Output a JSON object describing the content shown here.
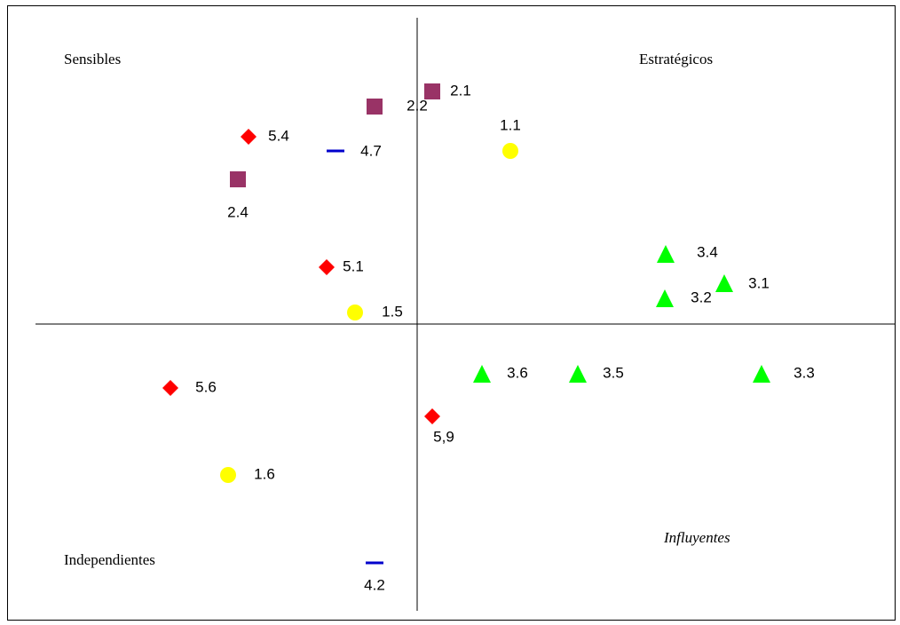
{
  "chart_data": {
    "type": "scatter",
    "quadrant_labels": [
      "Sensibles",
      "Estratégicos",
      "Independientes",
      "Influyentes"
    ],
    "xlim": [
      -43,
      54
    ],
    "ylim": [
      -32,
      35
    ],
    "series": [
      {
        "marker": "square",
        "color": "#993366",
        "labels": [
          "2.1",
          "2.2",
          "2.4"
        ],
        "x": [
          1.7,
          -4.8,
          -20.2
        ],
        "y": [
          26.2,
          24.5,
          16.3
        ]
      },
      {
        "marker": "diamond",
        "color": "#ff0000",
        "labels": [
          "5.4",
          "5.1",
          "5.6",
          "5,9"
        ],
        "x": [
          -19,
          -10.2,
          -27.8,
          1.7
        ],
        "y": [
          21.1,
          6.4,
          -7.2,
          -10.4
        ]
      },
      {
        "marker": "dash",
        "color": "#0000cc",
        "labels": [
          "4.7",
          "4.2"
        ],
        "x": [
          -9.2,
          -4.8
        ],
        "y": [
          19.5,
          -26.9
        ]
      },
      {
        "marker": "circle",
        "color": "#ffff00",
        "labels": [
          "1.1",
          "1.5",
          "1.6"
        ],
        "x": [
          10.5,
          -7,
          -21.3
        ],
        "y": [
          19.5,
          1.3,
          -17
        ]
      },
      {
        "marker": "triangle",
        "color": "#00ff00",
        "labels": [
          "3.4",
          "3.1",
          "3.2",
          "3.6",
          "3.5",
          "3.3"
        ],
        "x": [
          28,
          34.6,
          27.9,
          7.3,
          18.1,
          38.8
        ],
        "y": [
          7.8,
          4.5,
          2.8,
          -5.7,
          -5.7,
          -5.7
        ]
      }
    ]
  }
}
